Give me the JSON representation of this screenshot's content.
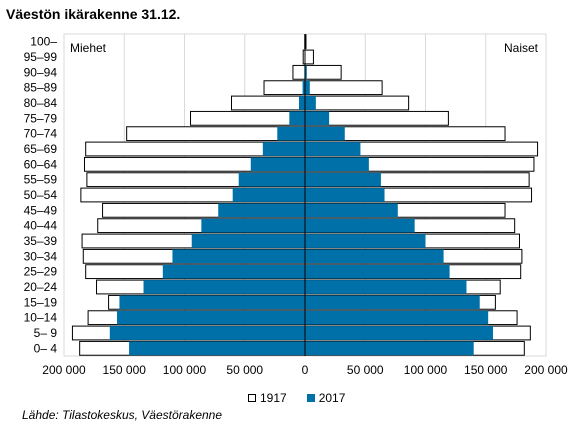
{
  "chart_data": {
    "type": "bar",
    "orientation": "horizontal",
    "subtype": "population-pyramid",
    "title": "Väestön ikärakenne 31.12.",
    "left_label": "Miehet",
    "right_label": "Naiset",
    "categories": [
      "0– 4",
      "5– 9",
      "10–14",
      "15–19",
      "20–24",
      "25–29",
      "30–34",
      "35–39",
      "40–44",
      "45–49",
      "50–54",
      "55–59",
      "60–64",
      "65–69",
      "70–74",
      "75–79",
      "80–84",
      "85–89",
      "90–94",
      "95–99",
      "100–"
    ],
    "series": [
      {
        "name": "1917",
        "color": "#ffffff",
        "stroke": "#000000",
        "men": [
          187000,
          193000,
          180000,
          163000,
          173000,
          182000,
          184000,
          185000,
          172000,
          168000,
          186000,
          181000,
          183000,
          182000,
          148000,
          95000,
          61000,
          34000,
          10000,
          1500,
          200
        ],
        "women": [
          182000,
          187000,
          176000,
          158000,
          162000,
          179000,
          180000,
          178000,
          174000,
          166000,
          188000,
          186000,
          190000,
          193000,
          166000,
          119000,
          86000,
          64000,
          30000,
          7000,
          800
        ]
      },
      {
        "name": "2017",
        "color": "#0070a8",
        "men": [
          146000,
          162000,
          156000,
          154000,
          134000,
          118000,
          110000,
          94000,
          86000,
          72000,
          60000,
          55000,
          45000,
          35000,
          23000,
          13000,
          5000,
          2000,
          500,
          100,
          20
        ],
        "women": [
          140000,
          156000,
          152000,
          145000,
          134000,
          120000,
          115000,
          100000,
          91000,
          77000,
          66000,
          63000,
          53000,
          46000,
          33000,
          20000,
          9000,
          4000,
          1500,
          300,
          40
        ]
      }
    ],
    "x_ticks": [
      "200 000",
      "150 000",
      "100 000",
      "50 000",
      "0",
      "50 000",
      "100 000",
      "150 000",
      "200 000"
    ],
    "xlim": [
      -200000,
      200000
    ],
    "grid": true,
    "legend_position": "bottom",
    "source": "Lähde: Tilastokeskus, Väestörakenne"
  }
}
